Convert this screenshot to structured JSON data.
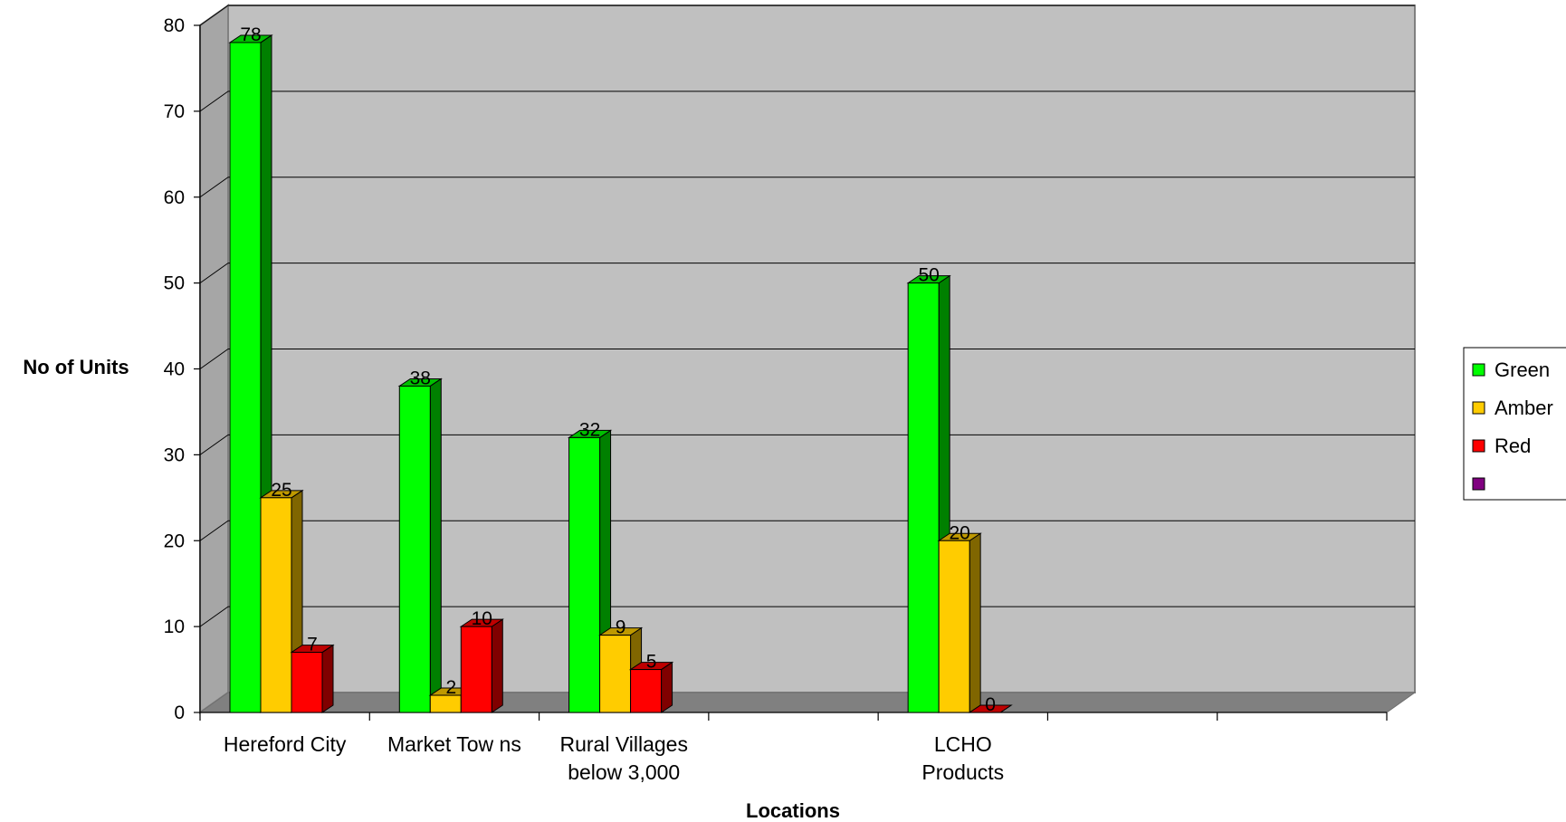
{
  "chart_data": {
    "type": "bar",
    "style": "3d-clustered",
    "categories": [
      [
        "Hereford City"
      ],
      [
        "Market Tow ns"
      ],
      [
        "Rural Villages",
        "below  3,000"
      ],
      [],
      [
        "LCHO",
        "Products"
      ],
      [],
      []
    ],
    "series": [
      {
        "name": "Green",
        "color": "#00ff00",
        "values": [
          78,
          38,
          32,
          null,
          50,
          null,
          null
        ]
      },
      {
        "name": "Amber",
        "color": "#ffcc00",
        "values": [
          25,
          2,
          9,
          null,
          20,
          null,
          null
        ]
      },
      {
        "name": "Red",
        "color": "#ff0000",
        "values": [
          7,
          10,
          5,
          null,
          0,
          null,
          null
        ]
      },
      {
        "name": "",
        "color": "#800080",
        "values": [
          null,
          null,
          null,
          null,
          null,
          null,
          null
        ]
      }
    ],
    "data_labels": [
      [
        "78",
        "38",
        "32",
        null,
        "50",
        null,
        null
      ],
      [
        "25",
        "2",
        "9",
        null,
        "20",
        null,
        null
      ],
      [
        "7",
        "10",
        "5",
        null,
        "0",
        null,
        null
      ],
      [
        null,
        null,
        null,
        null,
        null,
        null,
        null
      ]
    ],
    "y_ticks": [
      "0",
      "10",
      "20",
      "30",
      "40",
      "50",
      "60",
      "70",
      "80"
    ],
    "ylim": [
      0,
      80
    ],
    "xlabel": "Locations",
    "ylabel": "No of Units",
    "grid": true,
    "legend": "right",
    "colors": {
      "wall": "#c0c0c0",
      "floor": "#808080",
      "gridline": "#000000"
    }
  }
}
